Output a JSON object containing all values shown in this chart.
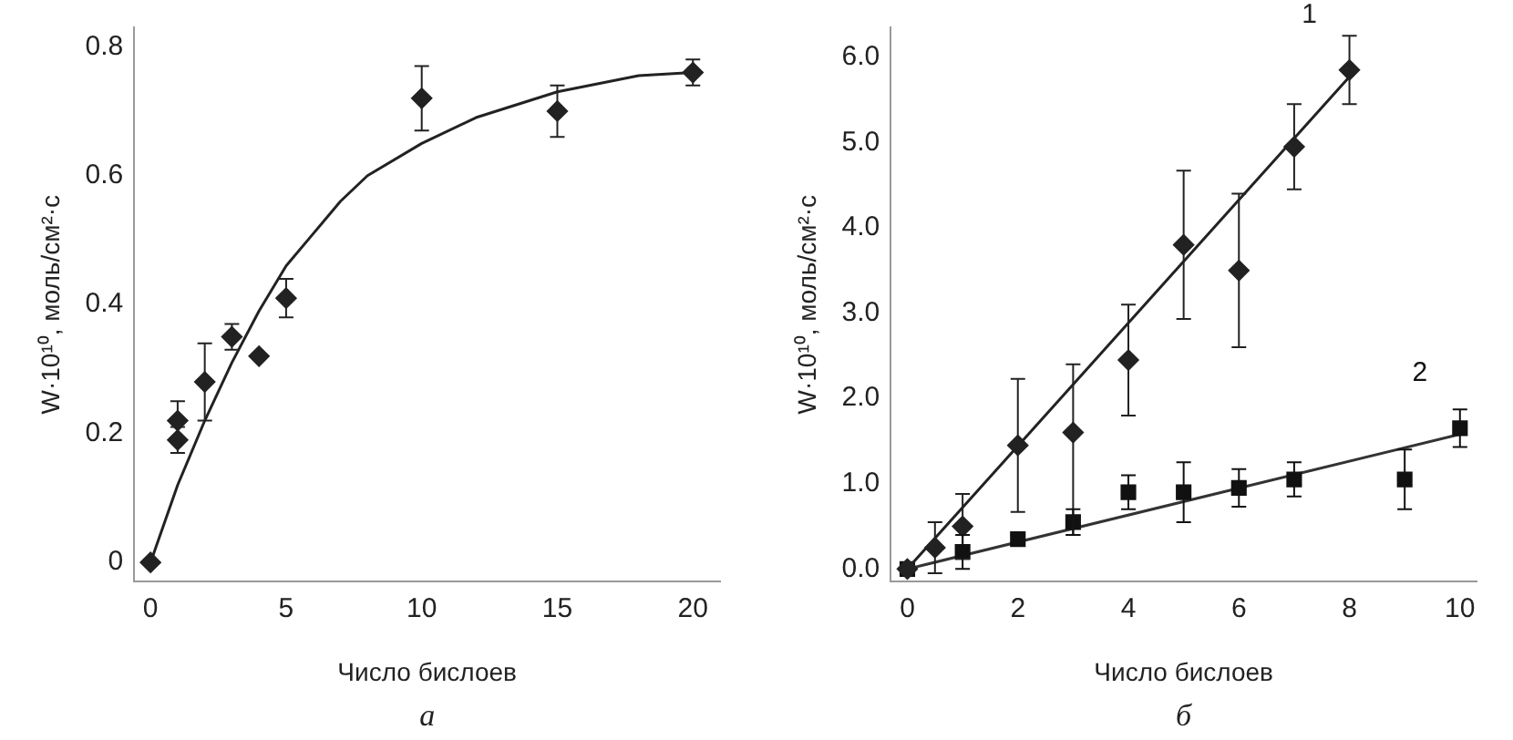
{
  "chart_data": [
    {
      "type": "scatter",
      "xlabel": "Число бислоев",
      "ylabel": "W·10¹⁰, моль/см²·с",
      "annotations": [
        "а"
      ],
      "xlim": [
        -0.6,
        21
      ],
      "ylim": [
        -0.03,
        0.83
      ],
      "xticks": [
        0,
        5,
        10,
        15,
        20
      ],
      "yticks": [
        0,
        0.2,
        0.4,
        0.6,
        0.8
      ],
      "grid": false,
      "legend": false,
      "series": [
        {
          "type": "scatter",
          "marker": "diamond",
          "color": "#222222",
          "x": [
            0,
            1,
            1,
            2,
            3,
            4,
            5,
            10,
            15,
            20
          ],
          "values": [
            0,
            0.22,
            0.19,
            0.28,
            0.35,
            0.32,
            0.41,
            0.72,
            0.7,
            0.76
          ],
          "errors": [
            null,
            0.03,
            0.02,
            0.06,
            0.02,
            null,
            0.03,
            0.05,
            0.04,
            0.02
          ]
        },
        {
          "type": "line",
          "marker": "none",
          "color": "#222222",
          "x": [
            0,
            1,
            2,
            3,
            4,
            5,
            6,
            7,
            8,
            10,
            12,
            15,
            18,
            20
          ],
          "values": [
            0,
            0.12,
            0.22,
            0.31,
            0.39,
            0.46,
            0.51,
            0.56,
            0.6,
            0.65,
            0.69,
            0.73,
            0.755,
            0.76
          ]
        }
      ]
    },
    {
      "type": "scatter",
      "xlabel": "Число бислоев",
      "ylabel": "W·10¹⁰, моль/см²·с",
      "annotations": [
        "б"
      ],
      "xlim": [
        -0.3,
        10.3
      ],
      "ylim": [
        -0.15,
        6.35
      ],
      "xticks": [
        0,
        2,
        4,
        6,
        8,
        10
      ],
      "yticks": [
        {
          "value": 0,
          "label": "0.0"
        },
        {
          "value": 1,
          "label": "1.0"
        },
        {
          "value": 2,
          "label": "2.0"
        },
        {
          "value": 3,
          "label": "3.0"
        },
        {
          "value": 4,
          "label": "4.0"
        },
        {
          "value": 5,
          "label": "5.0"
        },
        {
          "value": 6,
          "label": "6.0"
        }
      ],
      "grid": false,
      "legend": false,
      "series": [
        {
          "type": "scatter",
          "name": "1",
          "marker": "diamond",
          "color": "#222222",
          "x": [
            0,
            0.5,
            1,
            2,
            3,
            4,
            5,
            6,
            7,
            8
          ],
          "values": [
            0,
            0.25,
            0.5,
            1.45,
            1.6,
            2.45,
            3.8,
            3.5,
            4.95,
            5.85
          ],
          "errors": [
            null,
            0.3,
            0.38,
            0.78,
            [
              0.4,
              2.4
            ],
            0.65,
            0.87,
            0.9,
            0.5,
            0.4
          ]
        },
        {
          "type": "line",
          "marker": "none",
          "color": "#222222",
          "x": [
            0,
            8
          ],
          "values": [
            0,
            5.77
          ]
        },
        {
          "type": "scatter",
          "name": "2",
          "marker": "square",
          "color": "#111111",
          "x": [
            0,
            1,
            2,
            3,
            4,
            5,
            6,
            7,
            9,
            10
          ],
          "values": [
            0,
            0.2,
            0.35,
            0.55,
            0.9,
            0.9,
            0.95,
            1.05,
            1.05,
            1.65
          ],
          "errors": [
            null,
            0.2,
            0.05,
            0.15,
            0.2,
            0.35,
            0.22,
            0.2,
            0.35,
            0.22
          ]
        },
        {
          "type": "line",
          "marker": "none",
          "color": "#333333",
          "x": [
            0,
            10
          ],
          "values": [
            0,
            1.58
          ]
        }
      ]
    }
  ]
}
